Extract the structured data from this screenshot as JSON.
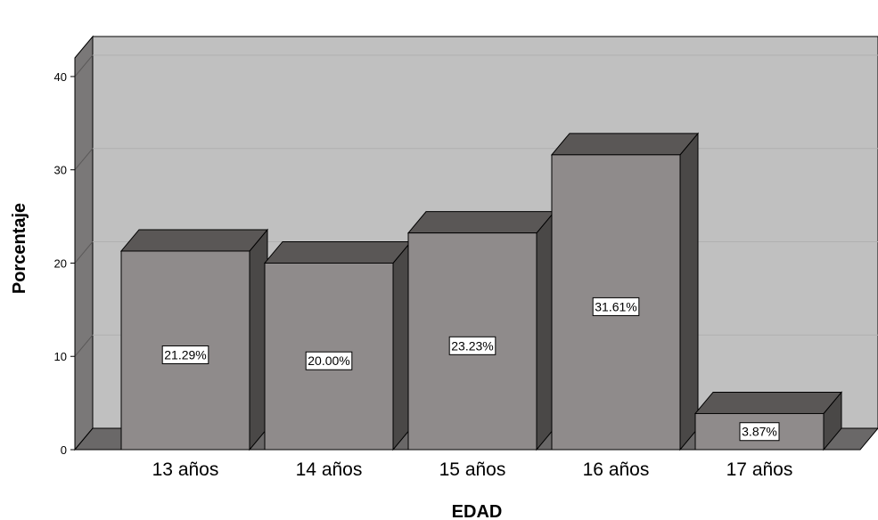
{
  "chart_data": {
    "type": "bar",
    "xlabel": "EDAD",
    "ylabel": "Porcentaje",
    "categories": [
      "13 años",
      "14 años",
      "15 años",
      "16 años",
      "17 años"
    ],
    "values": [
      21.29,
      20.0,
      23.23,
      31.61,
      3.87
    ],
    "data_labels": [
      "21.29%",
      "20.00%",
      "23.23%",
      "31.61%",
      "3.87%"
    ],
    "ylim": [
      0,
      42
    ],
    "yticks": [
      0,
      10,
      20,
      30,
      40
    ],
    "ytick_labels": [
      "0",
      "10",
      "20",
      "30",
      "40"
    ],
    "grid": true,
    "style": "3d",
    "colors": {
      "bar_front": "#8f8b8b",
      "bar_top": "#5a5756",
      "bar_side": "#4a4847",
      "wall": "#c0c0c0",
      "wall_side": "#7a7878",
      "floor": "#6a6868",
      "gridline": "#b0b0b0"
    }
  }
}
